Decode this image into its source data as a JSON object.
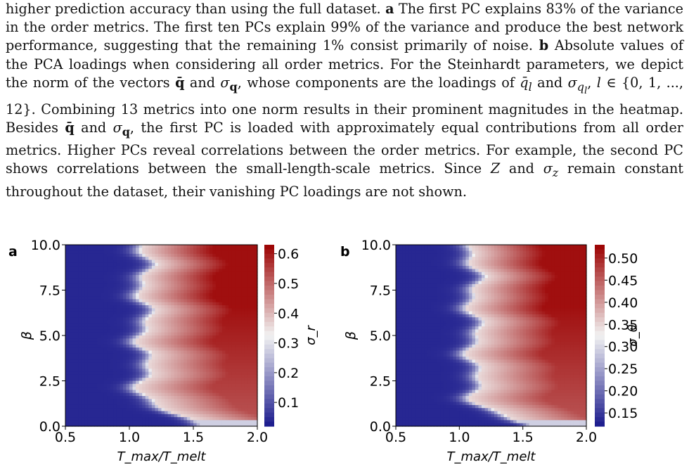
{
  "caption": {
    "text": "higher prediction accuracy than using the full dataset. a The first PC explains 83% of the variance in the order metrics. The first ten PCs explain 99% of the variance and produce the best network performance, suggesting that the remaining 1% consist primarily of noise. b Absolute values of the PCA loadings when considering all order metrics. For the Steinhardt parameters, we depict the norm of the vectors q̄ and σq, whose components are the loadings of q̄l and σql, l ∈ {0, 1, ..., 12}. Combining 13 metrics into one norm results in their prominent magnitudes in the heatmap. Besides q̄ and σq, the first PC is loaded with approximately equal contributions from all order metrics. Higher PCs reveal correlations between the order metrics. For example, the second PC shows correlations between the small-length-scale metrics. Since Z and σz remain constant throughout the dataset, their vanishing PC loadings are not shown."
  },
  "chart_data": [
    {
      "type": "heatmap",
      "panel_label": "a",
      "xlabel": "T_max/T_melt",
      "ylabel": "β",
      "colorbar_label": "σ_r",
      "x_ticks": [
        "0.5",
        "1.0",
        "1.5",
        "2.0"
      ],
      "y_ticks": [
        "0.0",
        "2.5",
        "5.0",
        "7.5",
        "10.0"
      ],
      "colorbar_ticks": [
        "0.1",
        "0.2",
        "0.3",
        "0.4",
        "0.5",
        "0.6"
      ],
      "xlim": [
        0.5,
        2.0
      ],
      "ylim": [
        0.0,
        10.0
      ],
      "clim": [
        0.02,
        0.63
      ],
      "colormap": "blue-white-red",
      "grid": false
    },
    {
      "type": "heatmap",
      "panel_label": "b",
      "xlabel": "T_max/T_melt",
      "ylabel": "β",
      "colorbar_label": "σ_θ",
      "x_ticks": [
        "0.5",
        "1.0",
        "1.5",
        "2.0"
      ],
      "y_ticks": [
        "0.0",
        "2.5",
        "5.0",
        "7.5",
        "10.0"
      ],
      "colorbar_ticks": [
        "0.15",
        "0.20",
        "0.25",
        "0.30",
        "0.35",
        "0.40",
        "0.45",
        "0.50"
      ],
      "xlim": [
        0.5,
        2.0
      ],
      "ylim": [
        0.0,
        10.0
      ],
      "clim": [
        0.12,
        0.53
      ],
      "colormap": "blue-white-red",
      "grid": false
    }
  ],
  "colors": {
    "low": "#1a1a8c",
    "mid": "#f2f2f2",
    "high": "#9b0000"
  }
}
